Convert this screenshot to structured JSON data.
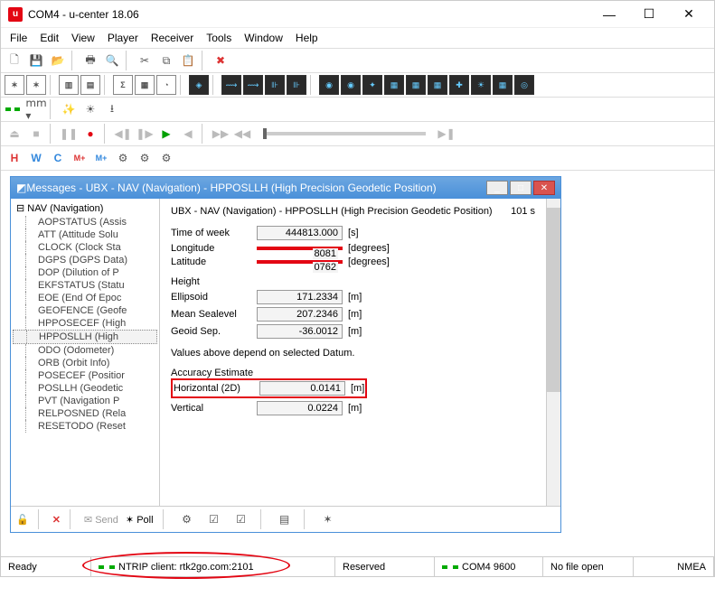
{
  "window": {
    "title": "COM4 - u-center 18.06"
  },
  "menu": [
    "File",
    "Edit",
    "View",
    "Player",
    "Receiver",
    "Tools",
    "Window",
    "Help"
  ],
  "toolbar3_letters": [
    "H",
    "W",
    "C",
    "M+",
    "M+"
  ],
  "inner": {
    "title": "Messages - UBX - NAV (Navigation) - HPPOSLLH (High Precision Geodetic Position)",
    "header": "UBX - NAV (Navigation) - HPPOSLLH (High Precision Geodetic Position)",
    "age": "101 s"
  },
  "tree": {
    "root": "NAV (Navigation)",
    "items": [
      "AOPSTATUS (Assis",
      "ATT (Attitude Solu",
      "CLOCK (Clock Sta",
      "DGPS (DGPS Data)",
      "DOP (Dilution of P",
      "EKFSTATUS (Statu",
      "EOE (End Of Epoc",
      "GEOFENCE (Geofe",
      "HPPOSECEF (High",
      "HPPOSLLH (High",
      "ODO (Odometer)",
      "ORB (Orbit Info)",
      "POSECEF (Positior",
      "POSLLH (Geodetic",
      "PVT (Navigation P",
      "RELPOSNED (Rela",
      "RESETODO (Reset"
    ],
    "selected_index": 9
  },
  "fields": {
    "tow": {
      "label": "Time of week",
      "value": "444813.000",
      "unit": "[s]"
    },
    "lon": {
      "label": "Longitude",
      "tail": "8081",
      "unit": "[degrees]"
    },
    "lat": {
      "label": "Latitude",
      "tail": "0762",
      "unit": "[degrees]"
    },
    "height_lbl": "Height",
    "ellip": {
      "label": "Ellipsoid",
      "value": "171.2334",
      "unit": "[m]"
    },
    "msl": {
      "label": "Mean Sealevel",
      "value": "207.2346",
      "unit": "[m]"
    },
    "geoid": {
      "label": "Geoid Sep.",
      "value": "-36.0012",
      "unit": "[m]"
    },
    "datum_note": "Values above depend on selected Datum.",
    "acc_lbl": "Accuracy Estimate",
    "h2d": {
      "label": "Horizontal (2D)",
      "value": "0.0141",
      "unit": "[m]"
    },
    "vert": {
      "label": "Vertical",
      "value": "0.0224",
      "unit": "[m]"
    }
  },
  "botbar": {
    "send": "Send",
    "poll": "Poll"
  },
  "status": {
    "ready": "Ready",
    "ntrip": "NTRIP client: rtk2go.com:2101",
    "reserved": "Reserved",
    "port": "COM4 9600",
    "file": "No file open",
    "nmea": "NMEA"
  },
  "colors": {
    "accent_red": "#e30613",
    "title_blue": "#4a90d9"
  }
}
